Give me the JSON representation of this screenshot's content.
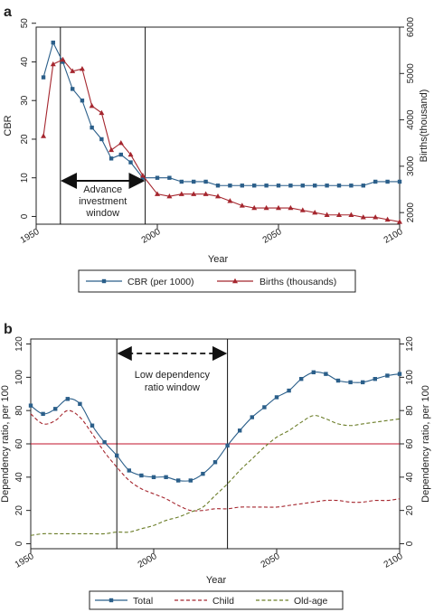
{
  "colors": {
    "cbr": "#2b5f8a",
    "births": "#a5262e",
    "total": "#2b5f8a",
    "child": "#a5262e",
    "oldage": "#6b7d28",
    "threshold": "#c0102a",
    "axis": "#222222"
  },
  "chart_data": [
    {
      "panel_label": "a",
      "type": "line",
      "xlabel": "Year",
      "ylabel_left": "CBR",
      "ylabel_right": "Births(thousand)",
      "xlim": [
        1950,
        2100
      ],
      "ylim_left": [
        -2,
        49
      ],
      "ylim_right": [
        1750,
        6000
      ],
      "x_ticks": [
        1950,
        2000,
        2050,
        2100
      ],
      "y_ticks_left": [
        0,
        10,
        20,
        30,
        40,
        50
      ],
      "y_ticks_right": [
        2000,
        3000,
        4000,
        5000,
        6000
      ],
      "vertical_lines_x": [
        1960,
        1995
      ],
      "annotation": {
        "lines": [
          "Advance",
          "investment",
          "window"
        ],
        "from_x": 1960,
        "to_x": 1995
      },
      "grid": false,
      "legend_position": "bottom",
      "series": [
        {
          "name": "CBR (per 1000)",
          "axis": "left",
          "marker": "square",
          "x": [
            1953,
            1957,
            1961,
            1965,
            1969,
            1973,
            1977,
            1981,
            1985,
            1989,
            1994,
            2000,
            2005,
            2010,
            2015,
            2020,
            2025,
            2030,
            2035,
            2040,
            2045,
            2050,
            2055,
            2060,
            2065,
            2070,
            2075,
            2080,
            2085,
            2090,
            2095,
            2100
          ],
          "y": [
            36,
            45,
            40,
            33,
            30,
            23,
            20,
            15,
            16,
            14,
            10,
            10,
            10,
            9,
            9,
            9,
            8,
            8,
            8,
            8,
            8,
            8,
            8,
            8,
            8,
            8,
            8,
            8,
            8,
            9,
            9,
            9
          ]
        },
        {
          "name": "Births (thousands)",
          "axis": "right",
          "marker": "triangle",
          "x": [
            1953,
            1957,
            1961,
            1965,
            1969,
            1973,
            1977,
            1981,
            1985,
            1989,
            1994,
            2000,
            2005,
            2010,
            2015,
            2020,
            2025,
            2030,
            2035,
            2040,
            2045,
            2050,
            2055,
            2060,
            2065,
            2070,
            2075,
            2080,
            2085,
            2090,
            2095,
            2100
          ],
          "y": [
            3650,
            5200,
            5300,
            5050,
            5100,
            4300,
            4150,
            3350,
            3500,
            3250,
            2800,
            2400,
            2350,
            2400,
            2400,
            2400,
            2350,
            2250,
            2150,
            2100,
            2100,
            2100,
            2100,
            2050,
            2000,
            1950,
            1950,
            1950,
            1900,
            1900,
            1850,
            1800
          ]
        }
      ]
    },
    {
      "panel_label": "b",
      "type": "line",
      "xlabel": "Year",
      "ylabel_left": "Dependency ratio, per 100",
      "ylabel_right": "Dependency ratio, per 100",
      "xlim": [
        1950,
        2100
      ],
      "ylim": [
        -3,
        123
      ],
      "x_ticks": [
        1950,
        2000,
        2050,
        2100
      ],
      "y_ticks": [
        0,
        20,
        40,
        60,
        80,
        100,
        120
      ],
      "vertical_lines_x": [
        1985,
        2030
      ],
      "horizontal_line_y": 60,
      "annotation": {
        "lines": [
          "Low dependency",
          "ratio window"
        ],
        "from_x": 1985,
        "to_x": 2030
      },
      "grid": false,
      "legend_position": "bottom",
      "series": [
        {
          "name": "Total",
          "style": "solid",
          "marker": "square",
          "x": [
            1950,
            1955,
            1960,
            1965,
            1970,
            1975,
            1980,
            1985,
            1990,
            1995,
            2000,
            2005,
            2010,
            2015,
            2020,
            2025,
            2030,
            2035,
            2040,
            2045,
            2050,
            2055,
            2060,
            2065,
            2070,
            2075,
            2080,
            2085,
            2090,
            2095,
            2100
          ],
          "y": [
            83,
            78,
            81,
            87,
            84,
            71,
            61,
            53,
            44,
            41,
            40,
            40,
            38,
            38,
            42,
            49,
            59,
            68,
            76,
            82,
            88,
            92,
            99,
            103,
            102,
            98,
            97,
            97,
            99,
            101,
            102
          ]
        },
        {
          "name": "Child",
          "style": "dashed",
          "x": [
            1950,
            1955,
            1960,
            1965,
            1970,
            1975,
            1980,
            1985,
            1990,
            1995,
            2000,
            2005,
            2010,
            2015,
            2020,
            2025,
            2030,
            2035,
            2040,
            2045,
            2050,
            2055,
            2060,
            2065,
            2070,
            2075,
            2080,
            2085,
            2090,
            2095,
            2100
          ],
          "y": [
            78,
            72,
            74,
            80,
            76,
            66,
            55,
            46,
            38,
            33,
            30,
            27,
            23,
            20,
            20,
            21,
            21,
            22,
            22,
            22,
            22,
            23,
            24,
            25,
            26,
            26,
            25,
            25,
            26,
            26,
            27
          ]
        },
        {
          "name": "Old-age",
          "style": "dashed",
          "x": [
            1950,
            1955,
            1960,
            1965,
            1970,
            1975,
            1980,
            1985,
            1990,
            1995,
            2000,
            2005,
            2010,
            2015,
            2020,
            2025,
            2030,
            2035,
            2040,
            2045,
            2050,
            2055,
            2060,
            2065,
            2070,
            2075,
            2080,
            2085,
            2090,
            2095,
            2100
          ],
          "y": [
            5,
            6,
            6,
            6,
            6,
            6,
            6,
            7,
            7,
            9,
            11,
            14,
            16,
            19,
            22,
            29,
            36,
            44,
            51,
            58,
            64,
            68,
            73,
            77,
            75,
            72,
            71,
            72,
            73,
            74,
            75
          ]
        }
      ]
    }
  ]
}
